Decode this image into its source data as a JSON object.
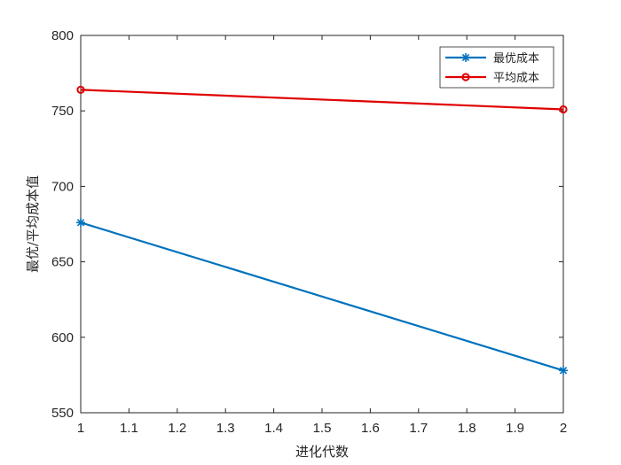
{
  "chart_data": {
    "type": "line",
    "title": "",
    "xlabel": "进化代数",
    "ylabel": "最优/平均成本值",
    "xlim": [
      1,
      2
    ],
    "ylim": [
      550,
      800
    ],
    "x_ticks": [
      "1",
      "1.1",
      "1.2",
      "1.3",
      "1.4",
      "1.5",
      "1.6",
      "1.7",
      "1.8",
      "1.9",
      "2"
    ],
    "y_ticks": [
      "550",
      "600",
      "650",
      "700",
      "750",
      "800"
    ],
    "grid": false,
    "legend_position": "top-right",
    "series": [
      {
        "name": "最优成本",
        "color": "#0072BD",
        "marker": "star",
        "x": [
          1,
          2
        ],
        "values": [
          676,
          578
        ]
      },
      {
        "name": "平均成本",
        "color": "#E00000",
        "marker": "circle",
        "x": [
          1,
          2
        ],
        "values": [
          764,
          751
        ]
      }
    ]
  }
}
